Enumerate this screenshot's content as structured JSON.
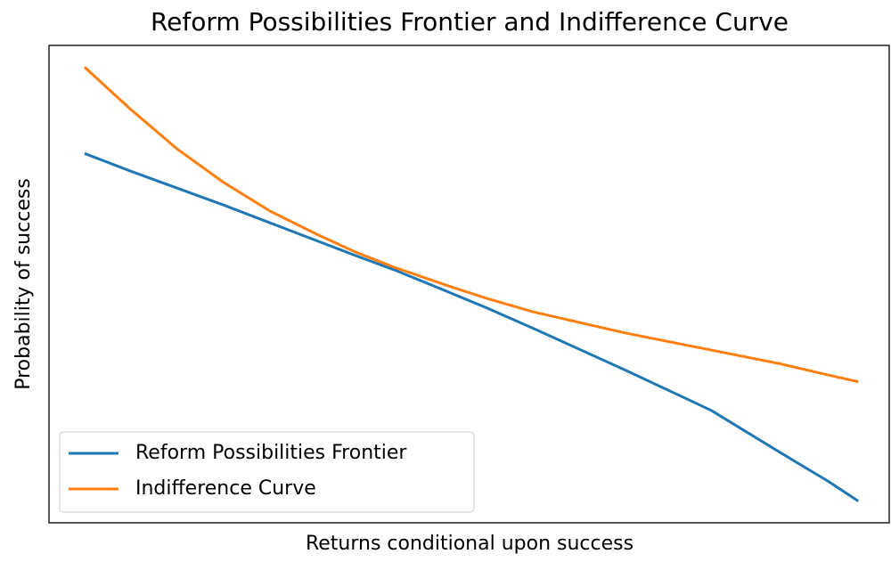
{
  "chart_data": {
    "type": "line",
    "title": "Reform Possibilities Frontier and Indifference Curve",
    "xlabel": "Returns conditional upon success",
    "ylabel": "Probability of success",
    "x": [
      0,
      0.06,
      0.12,
      0.18,
      0.24,
      0.3,
      0.35,
      0.4,
      0.47,
      0.52,
      0.58,
      0.7,
      0.81,
      0.9,
      0.96,
      1
    ],
    "series": [
      {
        "name": "Reform Possibilities Frontier",
        "color": "#1f77b4",
        "values": [
          0.801,
          0.76,
          0.721,
          0.682,
          0.641,
          0.6,
          0.566,
          0.533,
          0.482,
          0.445,
          0.398,
          0.301,
          0.209,
          0.111,
          0.047,
          0
        ]
      },
      {
        "name": "Indifference Curve",
        "color": "#ff7f0e",
        "values": [
          1.0,
          0.902,
          0.811,
          0.734,
          0.668,
          0.615,
          0.574,
          0.539,
          0.496,
          0.467,
          0.436,
          0.387,
          0.348,
          0.316,
          0.291,
          0.275
        ]
      }
    ],
    "xlim": [
      -0.046,
      1.04
    ],
    "ylim": [
      -0.05,
      1.05
    ],
    "legend": "lower left"
  }
}
